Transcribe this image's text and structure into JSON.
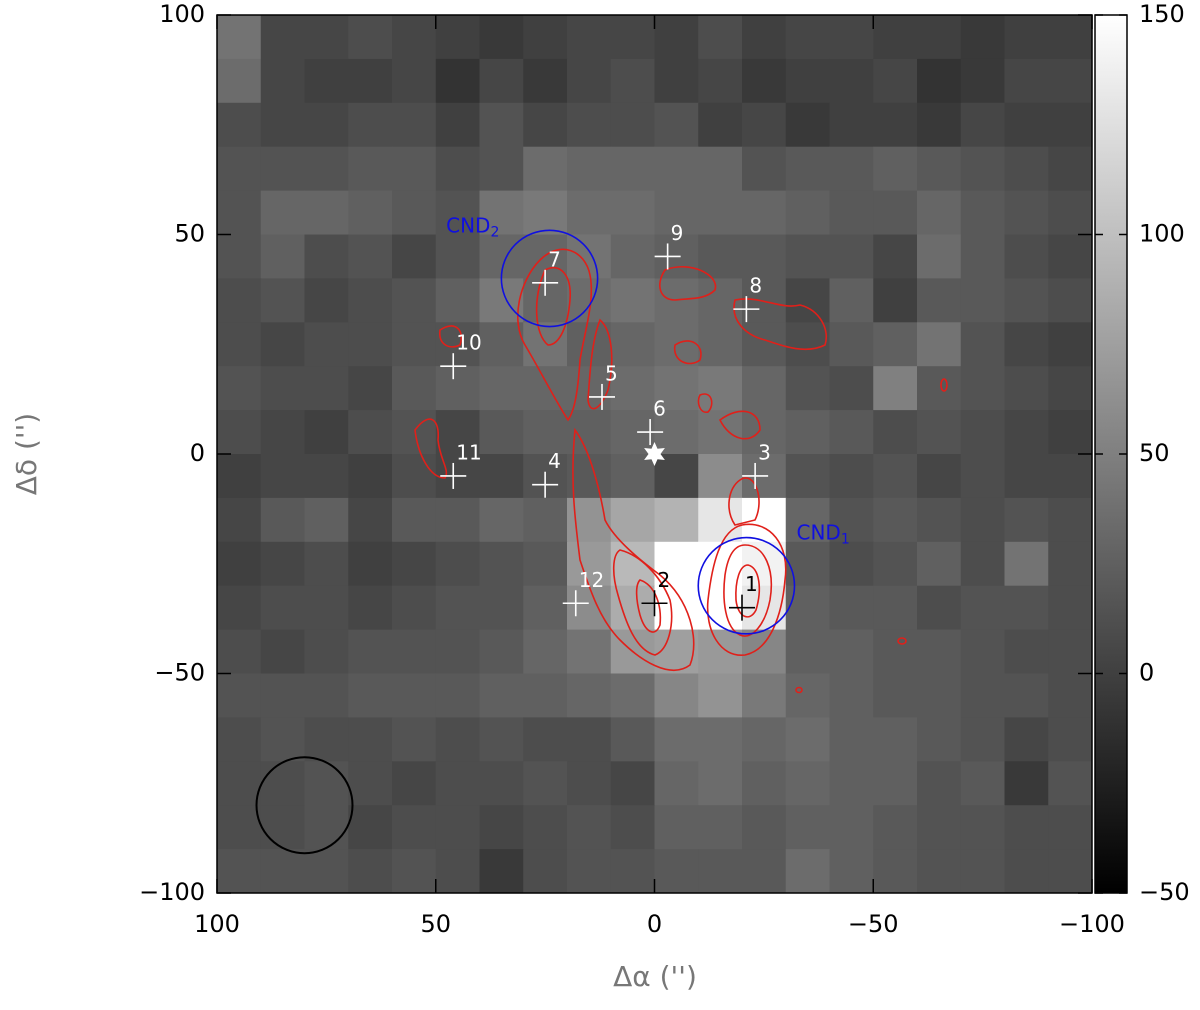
{
  "chart_data": {
    "type": "heatmap",
    "xlabel": "Δα ('')",
    "ylabel": "Δδ ('')",
    "xlim": [
      100,
      -100
    ],
    "ylim": [
      -100,
      100
    ],
    "xticks": [
      100,
      50,
      0,
      {
        "value": -50,
        "label": "−50"
      },
      {
        "value": -100,
        "label": "−100"
      }
    ],
    "yticks": [
      {
        "value": -100,
        "label": "−100"
      },
      {
        "value": -50,
        "label": "−50"
      },
      0,
      50,
      100
    ],
    "zlim": [
      -50,
      150
    ],
    "zticks": [
      {
        "value": -50,
        "label": "−50"
      },
      0,
      50,
      100,
      150
    ],
    "x": [
      95,
      85,
      75,
      65,
      55,
      45,
      35,
      25,
      15,
      5,
      -5,
      -15,
      -25,
      -35,
      -45,
      -55,
      -65,
      -75,
      -85,
      -95
    ],
    "y": [
      95,
      85,
      75,
      65,
      55,
      45,
      35,
      25,
      15,
      5,
      -5,
      -15,
      -25,
      -35,
      -45,
      -55,
      -65,
      -75,
      -85,
      -95
    ],
    "z": [
      [
        40,
        5,
        5,
        10,
        5,
        0,
        -5,
        0,
        5,
        5,
        0,
        10,
        0,
        5,
        5,
        0,
        0,
        -5,
        0,
        0
      ],
      [
        35,
        5,
        0,
        0,
        5,
        -10,
        5,
        -5,
        5,
        10,
        0,
        5,
        -5,
        0,
        0,
        5,
        -10,
        -5,
        5,
        5
      ],
      [
        10,
        5,
        5,
        10,
        10,
        0,
        15,
        5,
        10,
        10,
        15,
        0,
        5,
        -5,
        0,
        0,
        -5,
        5,
        0,
        0
      ],
      [
        15,
        15,
        15,
        20,
        20,
        10,
        15,
        35,
        30,
        30,
        30,
        30,
        15,
        20,
        20,
        25,
        20,
        15,
        10,
        5
      ],
      [
        15,
        30,
        30,
        25,
        20,
        15,
        40,
        45,
        35,
        35,
        30,
        30,
        30,
        25,
        20,
        20,
        30,
        20,
        15,
        10
      ],
      [
        15,
        25,
        10,
        15,
        5,
        15,
        30,
        30,
        40,
        30,
        25,
        20,
        20,
        15,
        15,
        5,
        35,
        20,
        10,
        5
      ],
      [
        10,
        15,
        5,
        10,
        15,
        25,
        45,
        30,
        35,
        40,
        35,
        30,
        20,
        5,
        25,
        0,
        20,
        20,
        15,
        10
      ],
      [
        10,
        5,
        10,
        10,
        15,
        15,
        25,
        40,
        25,
        30,
        35,
        30,
        20,
        10,
        20,
        25,
        40,
        15,
        5,
        0
      ],
      [
        15,
        10,
        10,
        5,
        20,
        25,
        30,
        30,
        30,
        35,
        40,
        45,
        30,
        15,
        10,
        50,
        20,
        15,
        10,
        5
      ],
      [
        10,
        5,
        0,
        10,
        15,
        5,
        20,
        25,
        25,
        30,
        35,
        40,
        30,
        25,
        20,
        10,
        15,
        10,
        5,
        0
      ],
      [
        0,
        5,
        5,
        0,
        10,
        5,
        5,
        15,
        20,
        25,
        5,
        60,
        35,
        15,
        10,
        15,
        5,
        10,
        5,
        5
      ],
      [
        5,
        20,
        25,
        5,
        20,
        20,
        30,
        25,
        65,
        80,
        90,
        130,
        150,
        30,
        15,
        20,
        15,
        10,
        15,
        10
      ],
      [
        0,
        5,
        10,
        0,
        5,
        10,
        15,
        20,
        70,
        95,
        150,
        150,
        140,
        20,
        10,
        15,
        25,
        10,
        40,
        10
      ],
      [
        5,
        10,
        10,
        5,
        10,
        15,
        15,
        25,
        60,
        85,
        150,
        150,
        130,
        25,
        20,
        20,
        10,
        15,
        15,
        10
      ],
      [
        10,
        5,
        10,
        15,
        15,
        15,
        20,
        30,
        40,
        70,
        75,
        70,
        55,
        25,
        25,
        20,
        20,
        15,
        10,
        10
      ],
      [
        15,
        15,
        15,
        20,
        20,
        20,
        25,
        25,
        30,
        35,
        55,
        65,
        45,
        30,
        25,
        20,
        20,
        15,
        15,
        10
      ],
      [
        10,
        15,
        10,
        10,
        15,
        10,
        15,
        10,
        10,
        20,
        35,
        35,
        30,
        35,
        25,
        25,
        20,
        15,
        5,
        10
      ],
      [
        10,
        10,
        15,
        10,
        5,
        10,
        10,
        15,
        10,
        5,
        30,
        35,
        25,
        30,
        25,
        25,
        15,
        20,
        -5,
        15
      ],
      [
        10,
        10,
        15,
        5,
        10,
        10,
        5,
        10,
        15,
        10,
        25,
        25,
        20,
        25,
        25,
        20,
        15,
        15,
        10,
        10
      ],
      [
        15,
        15,
        15,
        10,
        15,
        10,
        -5,
        10,
        15,
        15,
        20,
        20,
        20,
        35,
        25,
        20,
        15,
        15,
        10,
        10
      ]
    ],
    "sources": [
      {
        "label": "1",
        "x": -20,
        "y": -35,
        "color": "#000000"
      },
      {
        "label": "2",
        "x": 0,
        "y": -34,
        "color": "#000000"
      },
      {
        "label": "3",
        "x": -23,
        "y": -5,
        "color": "#ffffff"
      },
      {
        "label": "4",
        "x": 25,
        "y": -7,
        "color": "#ffffff"
      },
      {
        "label": "5",
        "x": 12,
        "y": 13,
        "color": "#ffffff"
      },
      {
        "label": "6",
        "x": 1,
        "y": 5,
        "color": "#ffffff"
      },
      {
        "label": "7",
        "x": 25,
        "y": 39,
        "color": "#ffffff"
      },
      {
        "label": "8",
        "x": -21,
        "y": 33,
        "color": "#ffffff"
      },
      {
        "label": "9",
        "x": -3,
        "y": 45,
        "color": "#ffffff"
      },
      {
        "label": "10",
        "x": 46,
        "y": 20,
        "color": "#ffffff"
      },
      {
        "label": "11",
        "x": 46,
        "y": -5,
        "color": "#ffffff"
      },
      {
        "label": "12",
        "x": 18,
        "y": -34,
        "color": "#ffffff"
      }
    ],
    "regions": [
      {
        "label": "CND",
        "sub": "1",
        "x": -21,
        "y": -30,
        "r": 11,
        "color": "#1010e0",
        "side": "right"
      },
      {
        "label": "CND",
        "sub": "2",
        "x": 24,
        "y": 40,
        "r": 11,
        "color": "#1010e0",
        "side": "left"
      }
    ],
    "center": {
      "x": 0,
      "y": 0
    },
    "beam": {
      "x": 80,
      "y": -80,
      "r": 11
    }
  }
}
